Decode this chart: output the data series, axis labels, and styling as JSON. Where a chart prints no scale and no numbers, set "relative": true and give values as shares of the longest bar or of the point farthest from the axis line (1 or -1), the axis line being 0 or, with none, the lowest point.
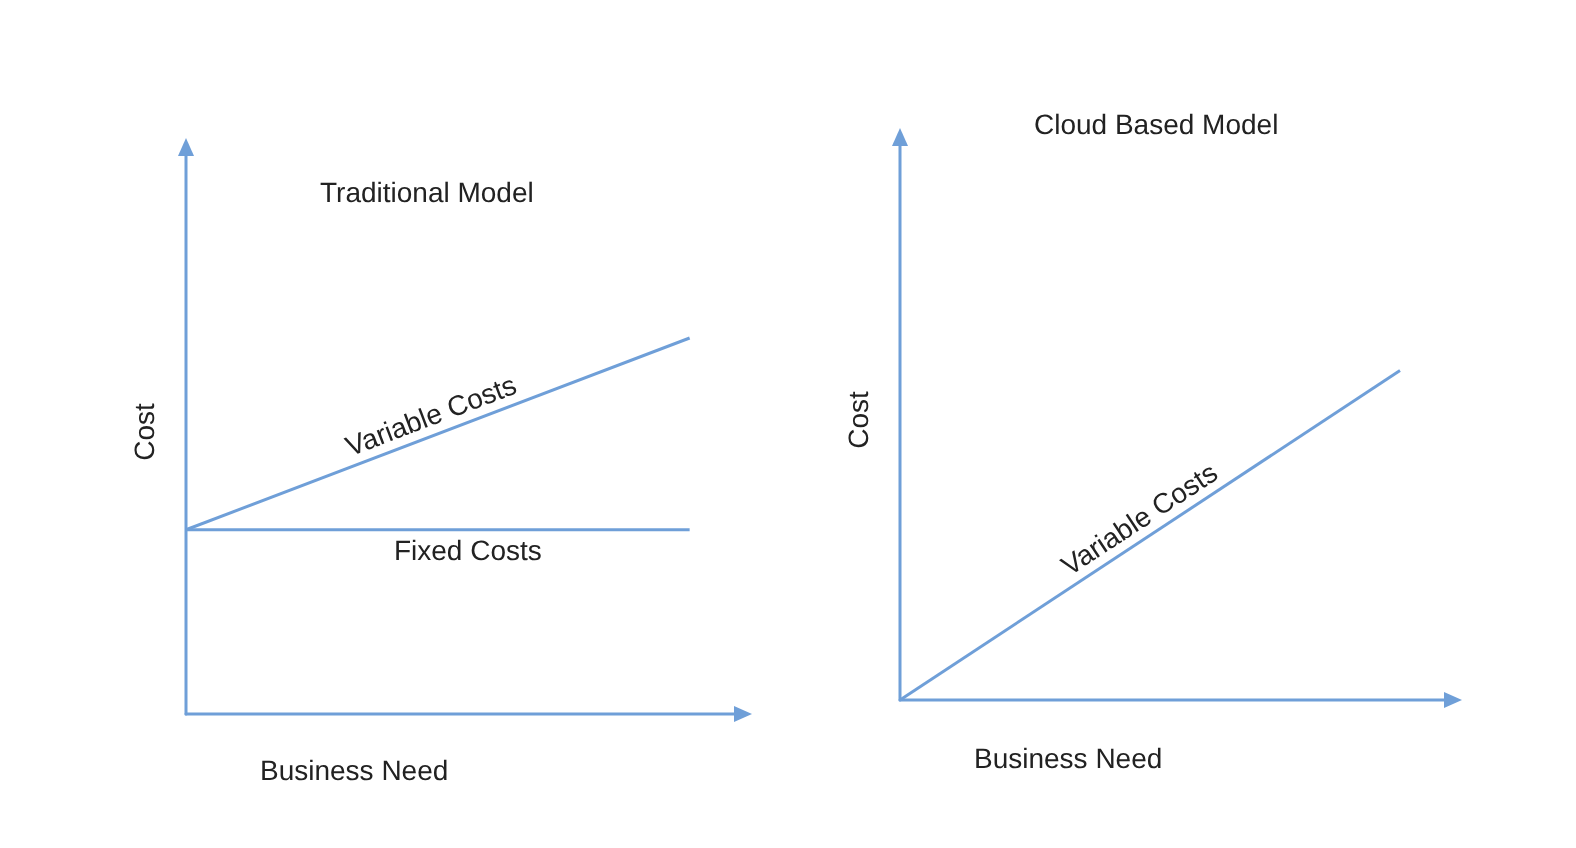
{
  "chart_data": [
    {
      "type": "line",
      "title": "Traditional Model",
      "xlabel": "Business Need",
      "ylabel": "Cost",
      "categories": [
        null,
        null
      ],
      "relative": true,
      "legend": false,
      "grid": false,
      "marker": "none",
      "series": [
        {
          "name": "Variable Costs",
          "color": "#6f9fd8",
          "values": [
            0.49,
            1
          ]
        },
        {
          "name": "Fixed Costs",
          "color": "#6f9fd8",
          "values": [
            0.49,
            0.49
          ]
        }
      ]
    },
    {
      "type": "line",
      "title": "Cloud Based Model",
      "xlabel": "Business Need",
      "ylabel": "Cost",
      "categories": [
        null,
        null
      ],
      "relative": true,
      "legend": false,
      "grid": false,
      "marker": "none",
      "series": [
        {
          "name": "Variable Costs",
          "color": "#6f9fd8",
          "values": [
            0,
            1
          ]
        }
      ]
    }
  ]
}
